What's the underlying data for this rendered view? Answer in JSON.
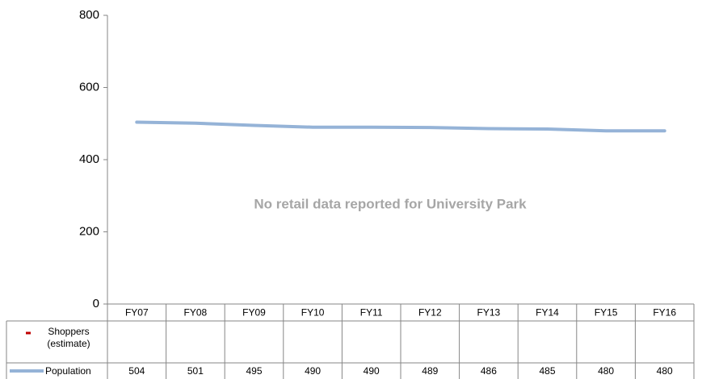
{
  "chart_data": {
    "type": "line",
    "annotation": "No retail data reported for University Park",
    "categories": [
      "FY07",
      "FY08",
      "FY09",
      "FY10",
      "FY11",
      "FY12",
      "FY13",
      "FY14",
      "FY15",
      "FY16"
    ],
    "series": [
      {
        "name": "Shoppers (estimate)",
        "color": "#c00000",
        "values": [
          null,
          null,
          null,
          null,
          null,
          null,
          null,
          null,
          null,
          null
        ]
      },
      {
        "name": "Population",
        "color": "#95b3d7",
        "values": [
          504,
          501,
          495,
          490,
          490,
          489,
          486,
          485,
          480,
          480
        ]
      }
    ],
    "ylim": [
      0,
      800
    ],
    "yticks": [
      0,
      200,
      400,
      600,
      800
    ],
    "grid": false
  }
}
